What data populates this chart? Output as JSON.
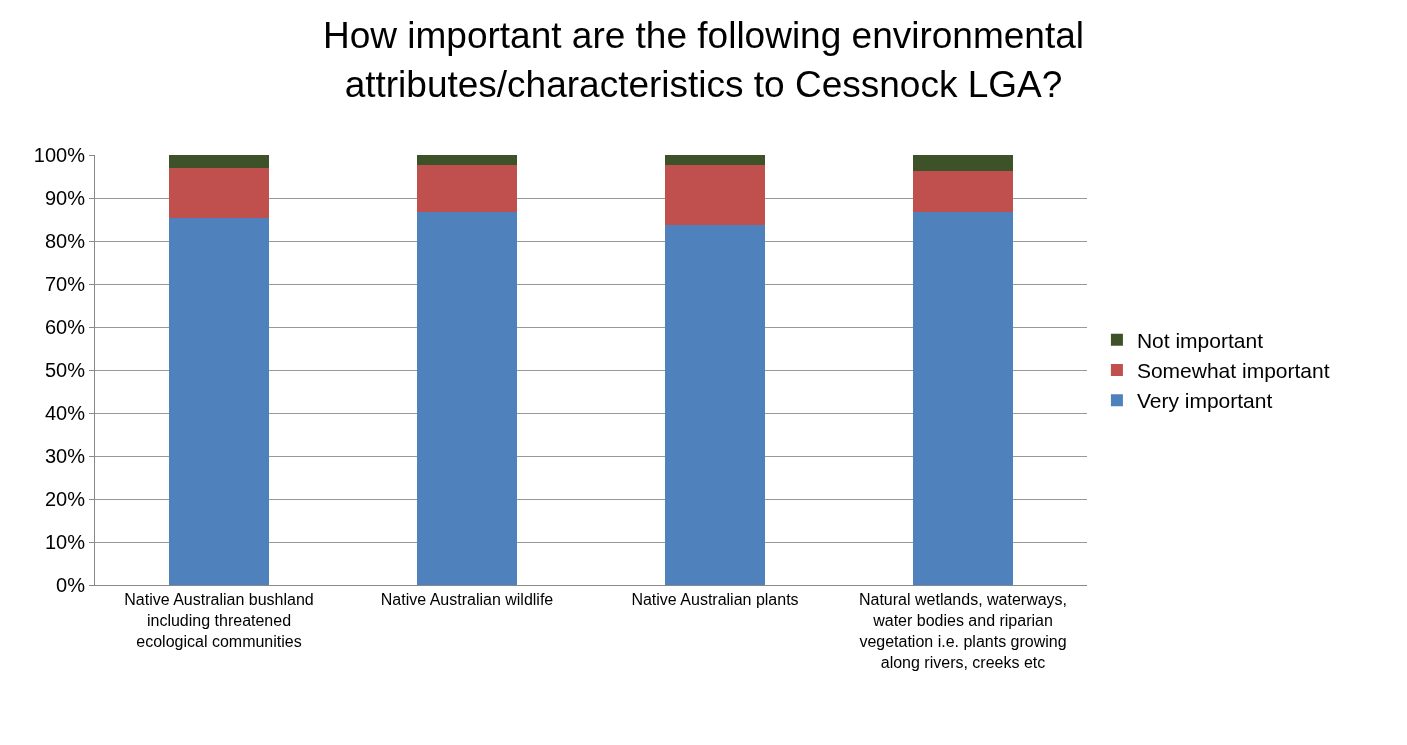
{
  "chart_data": {
    "type": "bar",
    "stacked": true,
    "title": "How important are the following environmental attributes/characteristics to Cessnock LGA?",
    "categories": [
      "Native Australian bushland including threatened ecological communities",
      "Native Australian wildlife",
      "Native Australian plants",
      "Natural wetlands, waterways, water bodies and riparian vegetation i.e. plants growing along rivers, creeks etc"
    ],
    "series": [
      {
        "name": "Very important",
        "color": "#4f81bd",
        "values": [
          85.3,
          86.8,
          83.8,
          86.8
        ]
      },
      {
        "name": "Somewhat important",
        "color": "#c0504d",
        "values": [
          11.7,
          10.9,
          13.9,
          9.4
        ]
      },
      {
        "name": "Not important",
        "color": "#3d5229",
        "values": [
          3.0,
          2.3,
          2.3,
          3.8
        ]
      }
    ],
    "ylim": [
      0,
      100
    ],
    "yticks": [
      {
        "value": 0,
        "label": "0%"
      },
      {
        "value": 10,
        "label": "10%"
      },
      {
        "value": 20,
        "label": "20%"
      },
      {
        "value": 30,
        "label": "30%"
      },
      {
        "value": 40,
        "label": "40%"
      },
      {
        "value": 50,
        "label": "50%"
      },
      {
        "value": 60,
        "label": "60%"
      },
      {
        "value": 70,
        "label": "70%"
      },
      {
        "value": 80,
        "label": "80%"
      },
      {
        "value": 90,
        "label": "90%"
      },
      {
        "value": 100,
        "label": "100%"
      }
    ],
    "grid": "y",
    "legend": "right"
  }
}
